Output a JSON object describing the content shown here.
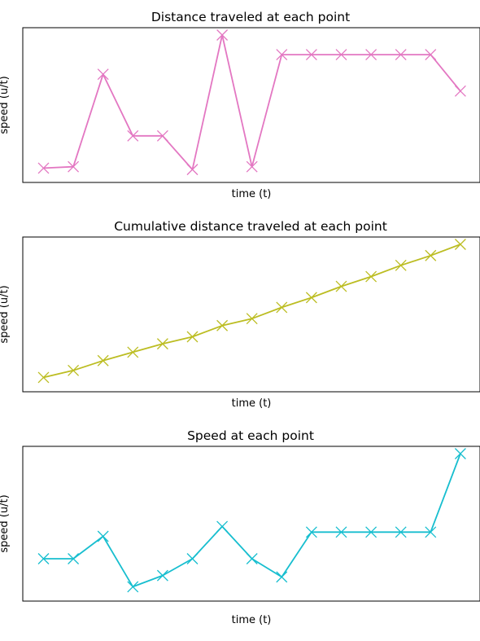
{
  "chart_data": [
    {
      "type": "line",
      "title": "Distance traveled at each point",
      "xlabel": "time (t)",
      "ylabel": "speed (u/t)",
      "xticks": false,
      "yticks": false,
      "grid": false,
      "marker": "x",
      "color": "#e377c2",
      "x": [
        0,
        1,
        2,
        3,
        4,
        5,
        6,
        7,
        8,
        9,
        10,
        11,
        12,
        13,
        14
      ],
      "series": [
        {
          "values": [
            0.05,
            0.06,
            0.72,
            0.28,
            0.28,
            0.04,
            1.0,
            0.06,
            0.86,
            0.86,
            0.86,
            0.86,
            0.86,
            0.86,
            0.6
          ]
        }
      ],
      "ylim": [
        0.0,
        1.0
      ]
    },
    {
      "type": "line",
      "title": "Cumulative distance traveled at each point",
      "xlabel": "time (t)",
      "ylabel": "speed (u/t)",
      "xticks": false,
      "yticks": false,
      "grid": false,
      "marker": "x",
      "color": "#bcbd22",
      "x": [
        0,
        1,
        2,
        3,
        4,
        5,
        6,
        7,
        8,
        9,
        10,
        11,
        12,
        13,
        14
      ],
      "series": [
        {
          "values": [
            0.05,
            0.1,
            0.17,
            0.23,
            0.29,
            0.34,
            0.42,
            0.47,
            0.55,
            0.62,
            0.7,
            0.77,
            0.85,
            0.92,
            1.0
          ]
        }
      ],
      "ylim": [
        0.0,
        1.0
      ]
    },
    {
      "type": "line",
      "title": "Speed at each point",
      "xlabel": "time (t)",
      "ylabel": "speed (u/t)",
      "xticks": false,
      "yticks": false,
      "grid": false,
      "marker": "x",
      "color": "#17becf",
      "x": [
        0,
        1,
        2,
        3,
        4,
        5,
        6,
        7,
        8,
        9,
        10,
        11,
        12,
        13,
        14
      ],
      "series": [
        {
          "values": [
            0.25,
            0.25,
            0.41,
            0.05,
            0.13,
            0.25,
            0.48,
            0.25,
            0.12,
            0.44,
            0.44,
            0.44,
            0.44,
            0.44,
            1.0
          ]
        }
      ],
      "ylim": [
        0.0,
        1.0
      ]
    }
  ]
}
